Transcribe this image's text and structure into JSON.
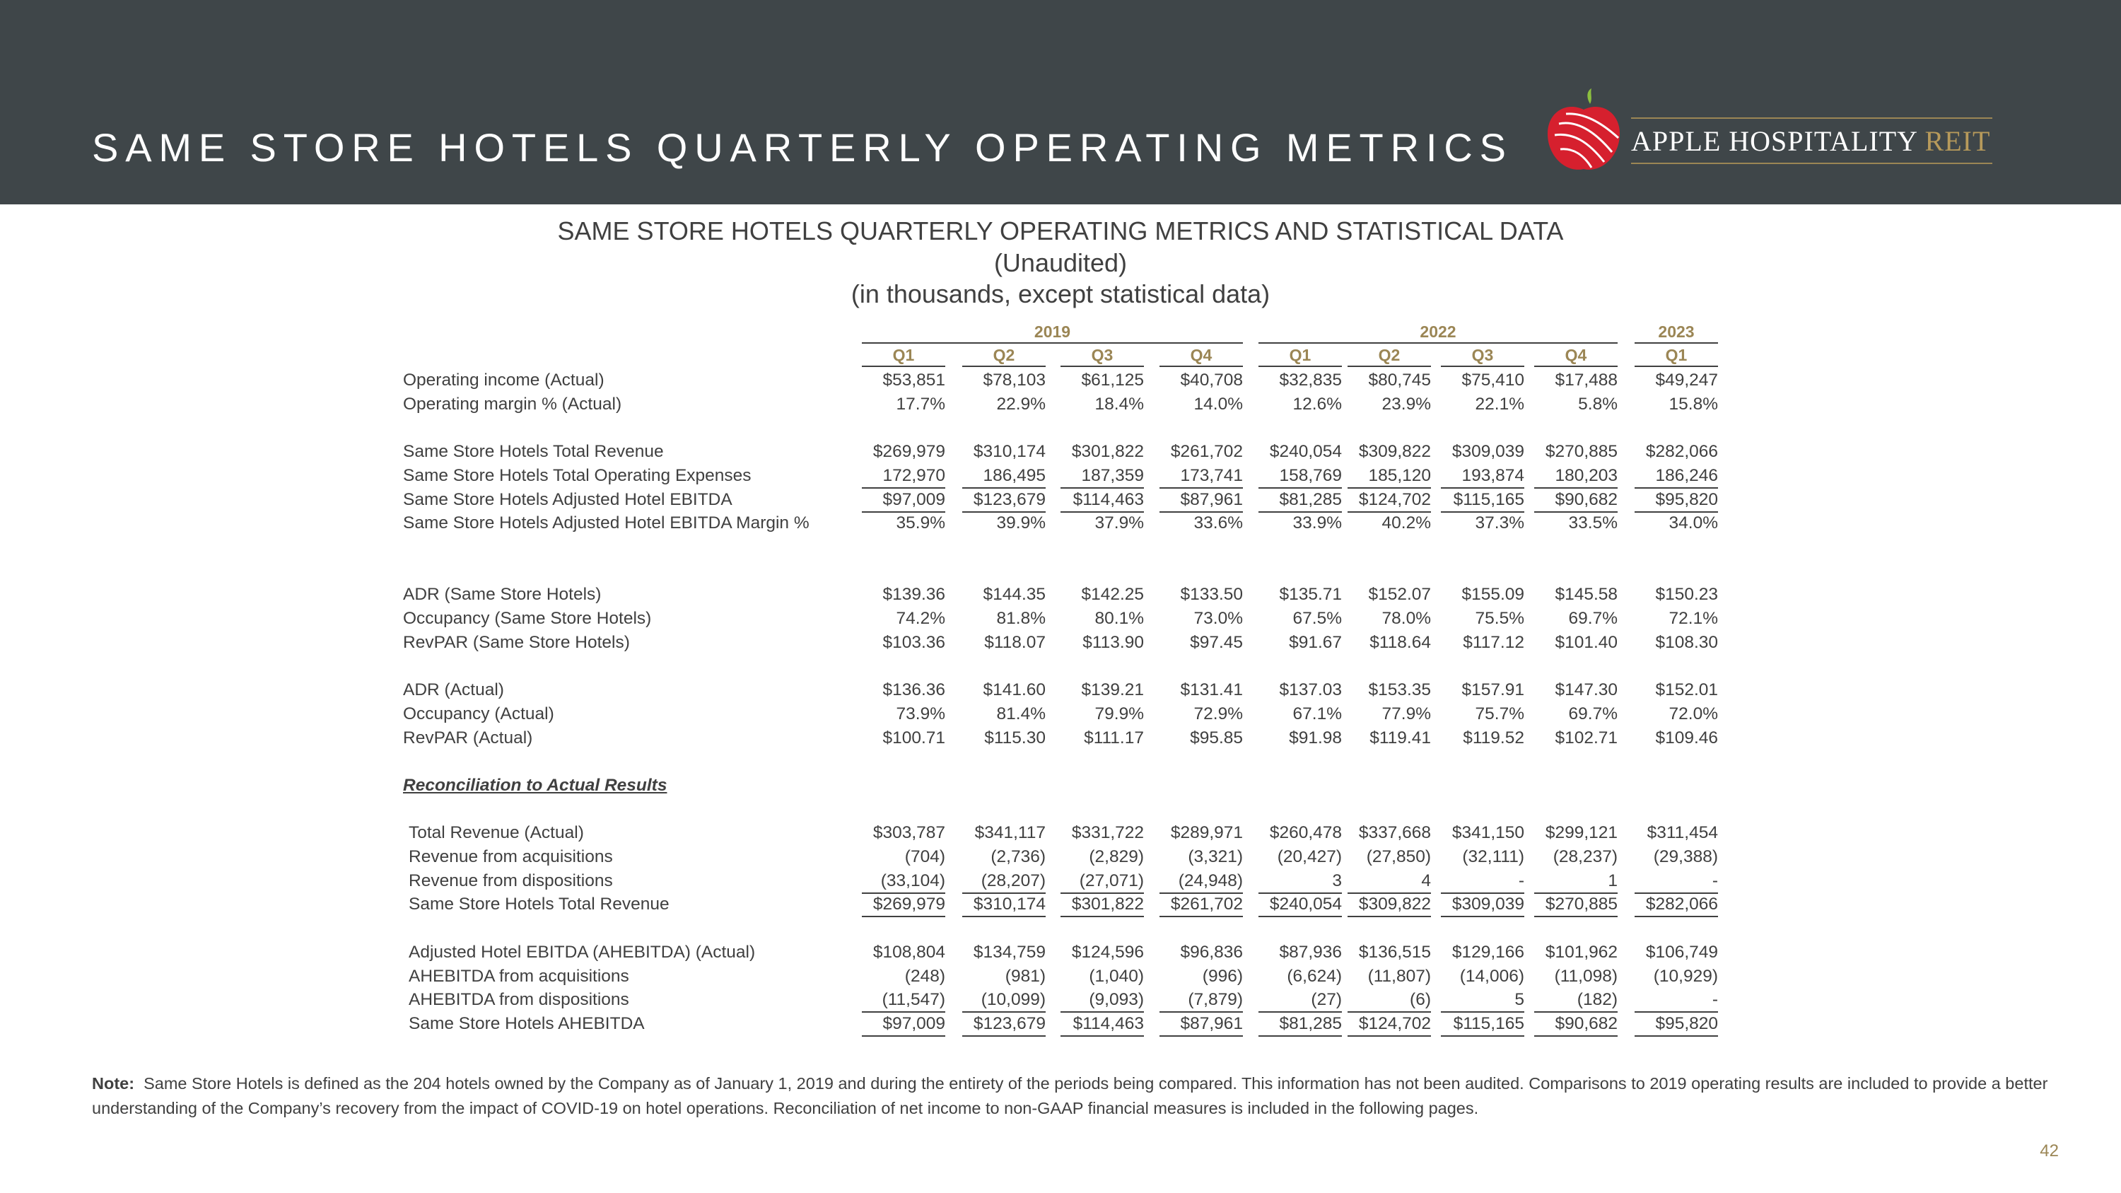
{
  "header": {
    "title": "SAME STORE HOTELS QUARTERLY OPERATING METRICS",
    "logo": {
      "name": "APPLE HOSPITALITY",
      "suffix": "REIT"
    }
  },
  "table": {
    "title": [
      "SAME STORE HOTELS QUARTERLY OPERATING METRICS AND STATISTICAL DATA",
      "(Unaudited)",
      "(in thousands, except statistical data)"
    ],
    "column_groups": [
      {
        "year": "2019",
        "quarters": [
          "Q1",
          "Q2",
          "Q3",
          "Q4"
        ]
      },
      {
        "year": "2022",
        "quarters": [
          "Q1",
          "Q2",
          "Q3",
          "Q4"
        ]
      },
      {
        "year": "2023",
        "quarters": [
          "Q1"
        ]
      }
    ],
    "rows": [
      {
        "label": "Operating income (Actual)",
        "values": [
          "$53,851",
          "$78,103",
          "$61,125",
          "$40,708",
          "$32,835",
          "$80,745",
          "$75,410",
          "$17,488",
          "$49,247"
        ]
      },
      {
        "label": "Operating margin % (Actual)",
        "values": [
          "17.7%",
          "22.9%",
          "18.4%",
          "14.0%",
          "12.6%",
          "23.9%",
          "22.1%",
          "5.8%",
          "15.8%"
        ]
      },
      {
        "label": "Same Store Hotels Total Revenue",
        "values": [
          "$269,979",
          "$310,174",
          "$301,822",
          "$261,702",
          "$240,054",
          "$309,822",
          "$309,039",
          "$270,885",
          "$282,066"
        ]
      },
      {
        "label": "Same Store Hotels Total Operating Expenses",
        "values": [
          "172,970",
          "186,495",
          "187,359",
          "173,741",
          "158,769",
          "185,120",
          "193,874",
          "180,203",
          "186,246"
        ]
      },
      {
        "label": "Same Store Hotels Adjusted Hotel EBITDA",
        "values": [
          "$97,009",
          "$123,679",
          "$114,463",
          "$87,961",
          "$81,285",
          "$124,702",
          "$115,165",
          "$90,682",
          "$95,820"
        ]
      },
      {
        "label": "Same Store Hotels Adjusted Hotel EBITDA Margin %",
        "values": [
          "35.9%",
          "39.9%",
          "37.9%",
          "33.6%",
          "33.9%",
          "40.2%",
          "37.3%",
          "33.5%",
          "34.0%"
        ]
      },
      {
        "label": "ADR (Same Store Hotels)",
        "values": [
          "$139.36",
          "$144.35",
          "$142.25",
          "$133.50",
          "$135.71",
          "$152.07",
          "$155.09",
          "$145.58",
          "$150.23"
        ]
      },
      {
        "label": "Occupancy (Same Store Hotels)",
        "values": [
          "74.2%",
          "81.8%",
          "80.1%",
          "73.0%",
          "67.5%",
          "78.0%",
          "75.5%",
          "69.7%",
          "72.1%"
        ]
      },
      {
        "label": "RevPAR (Same Store Hotels)",
        "values": [
          "$103.36",
          "$118.07",
          "$113.90",
          "$97.45",
          "$91.67",
          "$118.64",
          "$117.12",
          "$101.40",
          "$108.30"
        ]
      },
      {
        "label": "ADR (Actual)",
        "values": [
          "$136.36",
          "$141.60",
          "$139.21",
          "$131.41",
          "$137.03",
          "$153.35",
          "$157.91",
          "$147.30",
          "$152.01"
        ]
      },
      {
        "label": "Occupancy (Actual)",
        "values": [
          "73.9%",
          "81.4%",
          "79.9%",
          "72.9%",
          "67.1%",
          "77.9%",
          "75.7%",
          "69.7%",
          "72.0%"
        ]
      },
      {
        "label": "RevPAR (Actual)",
        "values": [
          "$100.71",
          "$115.30",
          "$111.17",
          "$95.85",
          "$91.98",
          "$119.41",
          "$119.52",
          "$102.71",
          "$109.46"
        ]
      },
      {
        "label": "Reconciliation to Actual Results"
      },
      {
        "label": "Total Revenue (Actual)",
        "values": [
          "$303,787",
          "$341,117",
          "$331,722",
          "$289,971",
          "$260,478",
          "$337,668",
          "$341,150",
          "$299,121",
          "$311,454"
        ]
      },
      {
        "label": "Revenue from acquisitions",
        "values": [
          "(704)",
          "(2,736)",
          "(2,829)",
          "(3,321)",
          "(20,427)",
          "(27,850)",
          "(32,111)",
          "(28,237)",
          "(29,388)"
        ]
      },
      {
        "label": "Revenue from dispositions",
        "values": [
          "(33,104)",
          "(28,207)",
          "(27,071)",
          "(24,948)",
          "3",
          "4",
          "-",
          "1",
          "-"
        ]
      },
      {
        "label": "Same Store Hotels Total Revenue",
        "values": [
          "$269,979",
          "$310,174",
          "$301,822",
          "$261,702",
          "$240,054",
          "$309,822",
          "$309,039",
          "$270,885",
          "$282,066"
        ]
      },
      {
        "label": "Adjusted Hotel EBITDA (AHEBITDA) (Actual)",
        "values": [
          "$108,804",
          "$134,759",
          "$124,596",
          "$96,836",
          "$87,936",
          "$136,515",
          "$129,166",
          "$101,962",
          "$106,749"
        ]
      },
      {
        "label": "AHEBITDA from acquisitions",
        "values": [
          "(248)",
          "(981)",
          "(1,040)",
          "(996)",
          "(6,624)",
          "(11,807)",
          "(14,006)",
          "(11,098)",
          "(10,929)"
        ]
      },
      {
        "label": "AHEBITDA from dispositions",
        "values": [
          "(11,547)",
          "(10,099)",
          "(9,093)",
          "(7,879)",
          "(27)",
          "(6)",
          "5",
          "(182)",
          "-"
        ]
      },
      {
        "label": "Same Store Hotels AHEBITDA",
        "values": [
          "$97,009",
          "$123,679",
          "$114,463",
          "$87,961",
          "$81,285",
          "$124,702",
          "$115,165",
          "$90,682",
          "$95,820"
        ]
      }
    ]
  },
  "note": {
    "label": "Note:",
    "text": "Same Store Hotels is defined as the 204 hotels owned by the Company as of January 1, 2019 and during the entirety of the periods being compared. This information has not been audited. Comparisons to 2019 operating results are included to provide a better understanding of the Company’s recovery from the impact of COVID-19 on hotel operations. Reconciliation of net income to non-GAAP financial measures is included in the following pages."
  },
  "page_number": "42"
}
